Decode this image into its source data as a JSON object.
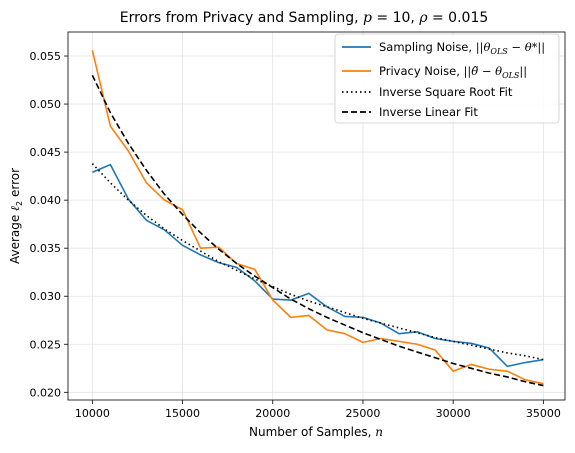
{
  "chart_data": {
    "type": "line",
    "title": {
      "prefix": "Errors from Privacy and Sampling, ",
      "p_symbol": "p",
      "p_value": " = 10, ",
      "rho_symbol": "ρ",
      "rho_value": " = 0.015"
    },
    "xlabel": {
      "text": "Number of Samples, ",
      "math": "n"
    },
    "ylabel": {
      "text": "Average ",
      "math": "ℓ",
      "sub": "2",
      "rest": " error"
    },
    "xlim": [
      8650,
      36200
    ],
    "ylim": [
      0.0192,
      0.0575
    ],
    "xticks": [
      10000,
      15000,
      20000,
      25000,
      30000,
      35000
    ],
    "yticks": [
      0.02,
      0.025,
      0.03,
      0.035,
      0.04,
      0.045,
      0.05,
      0.055
    ],
    "grid": true,
    "legend_position": "top-right",
    "x": [
      10000,
      11000,
      12000,
      13000,
      14000,
      15000,
      16000,
      17000,
      18000,
      19000,
      20000,
      21000,
      22000,
      23000,
      24000,
      25000,
      26000,
      27000,
      28000,
      29000,
      30000,
      31000,
      32000,
      33000,
      34000,
      35000
    ],
    "series": [
      {
        "name": "Sampling Noise, ||θ_OLS − θ*||",
        "legend_parts": [
          "Sampling Noise, ",
          "||θ",
          "OLS",
          " − θ*||"
        ],
        "color": "#1f77b4",
        "style": "solid",
        "values": [
          0.0429,
          0.0437,
          0.0401,
          0.0379,
          0.0369,
          0.0353,
          0.0343,
          0.0335,
          0.033,
          0.0316,
          0.0297,
          0.0296,
          0.0303,
          0.0289,
          0.0279,
          0.0278,
          0.0272,
          0.0261,
          0.0263,
          0.0256,
          0.0253,
          0.0251,
          0.0246,
          0.0227,
          0.0231,
          0.0234
        ]
      },
      {
        "name": "Privacy Noise, ||θ̃ − θ_OLS||",
        "legend_parts": [
          "Privacy Noise, ",
          "||θ̃ − θ",
          "OLS",
          "||"
        ],
        "color": "#ff7f0e",
        "style": "solid",
        "values": [
          0.0556,
          0.0477,
          0.0451,
          0.0418,
          0.04,
          0.039,
          0.035,
          0.0351,
          0.0334,
          0.0328,
          0.0296,
          0.0278,
          0.028,
          0.0265,
          0.0261,
          0.0252,
          0.0256,
          0.0253,
          0.025,
          0.0244,
          0.0222,
          0.0229,
          0.0224,
          0.0222,
          0.0213,
          0.0209
        ]
      },
      {
        "name": "Inverse Square Root Fit",
        "color": "#000000",
        "style": "dotted",
        "values": [
          0.0438,
          0.0418,
          0.04,
          0.0384,
          0.037,
          0.0358,
          0.0347,
          0.0336,
          0.0327,
          0.0318,
          0.031,
          0.0302,
          0.0295,
          0.0289,
          0.0283,
          0.0277,
          0.0272,
          0.0267,
          0.0262,
          0.0257,
          0.0253,
          0.0249,
          0.0245,
          0.0241,
          0.0238,
          0.0234
        ]
      },
      {
        "name": "Inverse Linear Fit",
        "color": "#000000",
        "style": "dashed",
        "values": [
          0.053,
          0.0491,
          0.0459,
          0.0431,
          0.0406,
          0.0385,
          0.0366,
          0.0349,
          0.0334,
          0.0321,
          0.0309,
          0.0297,
          0.0287,
          0.0278,
          0.027,
          0.0262,
          0.0255,
          0.0248,
          0.0242,
          0.0236,
          0.023,
          0.0225,
          0.022,
          0.0216,
          0.0211,
          0.0207
        ]
      }
    ]
  }
}
